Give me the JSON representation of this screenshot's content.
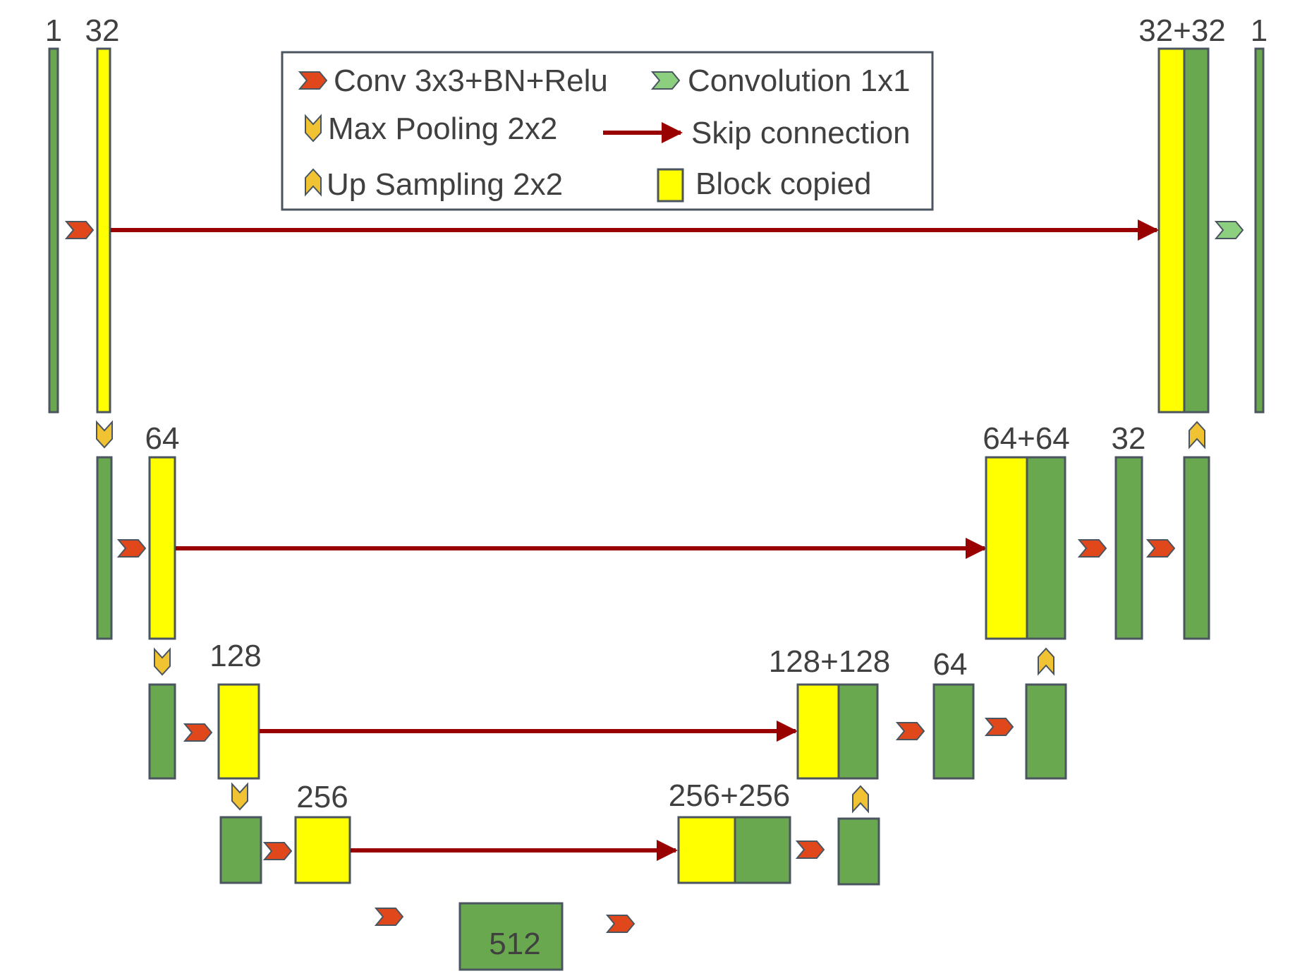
{
  "colors": {
    "green_block": "#6aa84f",
    "yellow_block": "#ffff00",
    "block_stroke": "#4a5560",
    "conv_arrow": "#e0481c",
    "conv1x1_arrow": "#8ccf7e",
    "pool_arrow": "#f1c232",
    "skip_arrow": "#990000",
    "text": "#404040"
  },
  "legend": {
    "conv": "Conv 3x3+BN+Relu",
    "conv1x1": "Convolution 1x1",
    "maxpool": "Max Pooling 2x2",
    "skip": "Skip connection",
    "upsample": "Up Sampling 2x2",
    "copied": "Block copied"
  },
  "labels": {
    "input_channels": "1",
    "enc1": "32",
    "dec1": "32+32",
    "output_channels": "1",
    "enc2": "64",
    "dec2_concat": "64+64",
    "dec2_out": "32",
    "enc3": "128",
    "dec3_concat": "128+128",
    "dec3_out": "64",
    "enc4": "256",
    "dec4_concat": "256+256",
    "bottleneck": "512"
  }
}
